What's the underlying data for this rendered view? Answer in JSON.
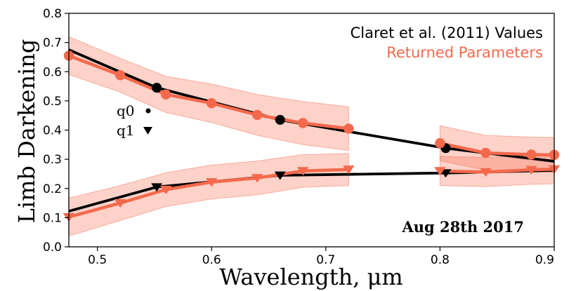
{
  "chart_data": {
    "type": "line",
    "xlabel": "Wavelength, μm",
    "ylabel": "Limb Darkening",
    "xlim": [
      0.475,
      0.9
    ],
    "ylim": [
      0.0,
      0.8
    ],
    "xticks": [
      "0.5",
      "0.6",
      "0.7",
      "0.8",
      "0.9"
    ],
    "yticks": [
      "0.0",
      "0.1",
      "0.2",
      "0.3",
      "0.4",
      "0.5",
      "0.6",
      "0.7",
      "0.8"
    ],
    "grid": false,
    "legend_position": "top-right",
    "legend": [
      {
        "label": "Claret et al. (2011) Values",
        "color": "#000000"
      },
      {
        "label": "Returned Parameters",
        "color": "#f4694c"
      }
    ],
    "marker_key": [
      {
        "label": "q0",
        "marker": "circle"
      },
      {
        "label": "q1",
        "marker": "triangle-down"
      }
    ],
    "annotation": "Aug 28th 2017",
    "series": [
      {
        "color": "#000000",
        "marker": "circle",
        "x": [
          0.475,
          0.552,
          0.66,
          0.805,
          0.9
        ],
        "y": [
          0.675,
          0.545,
          0.435,
          0.338,
          0.293
        ]
      },
      {
        "color": "#000000",
        "marker": "triangle-down",
        "x": [
          0.475,
          0.552,
          0.66,
          0.805,
          0.9
        ],
        "y": [
          0.122,
          0.205,
          0.245,
          0.253,
          0.262
        ]
      },
      {
        "color": "#f4694c",
        "marker": "circle",
        "segments": [
          {
            "x": [
              0.475,
              0.52,
              0.56,
              0.6,
              0.64,
              0.68,
              0.72
            ],
            "y": [
              0.655,
              0.588,
              0.522,
              0.492,
              0.452,
              0.424,
              0.405
            ],
            "err": [
              0.065,
              0.058,
              0.062,
              0.066,
              0.07,
              0.074,
              0.075
            ]
          },
          {
            "x": [
              0.8,
              0.84,
              0.88,
              0.9
            ],
            "y": [
              0.355,
              0.322,
              0.316,
              0.315
            ],
            "err": [
              0.06,
              0.06,
              0.06,
              0.06
            ]
          }
        ]
      },
      {
        "color": "#f4694c",
        "marker": "triangle-down",
        "segments": [
          {
            "x": [
              0.475,
              0.52,
              0.56,
              0.6,
              0.64,
              0.68,
              0.72
            ],
            "y": [
              0.102,
              0.15,
              0.196,
              0.222,
              0.236,
              0.26,
              0.265
            ],
            "err": [
              0.065,
              0.06,
              0.058,
              0.058,
              0.058,
              0.056,
              0.055
            ]
          },
          {
            "x": [
              0.8,
              0.84,
              0.88,
              0.9
            ],
            "y": [
              0.26,
              0.256,
              0.264,
              0.266
            ],
            "err": [
              0.05,
              0.05,
              0.05,
              0.05
            ]
          }
        ]
      }
    ]
  }
}
